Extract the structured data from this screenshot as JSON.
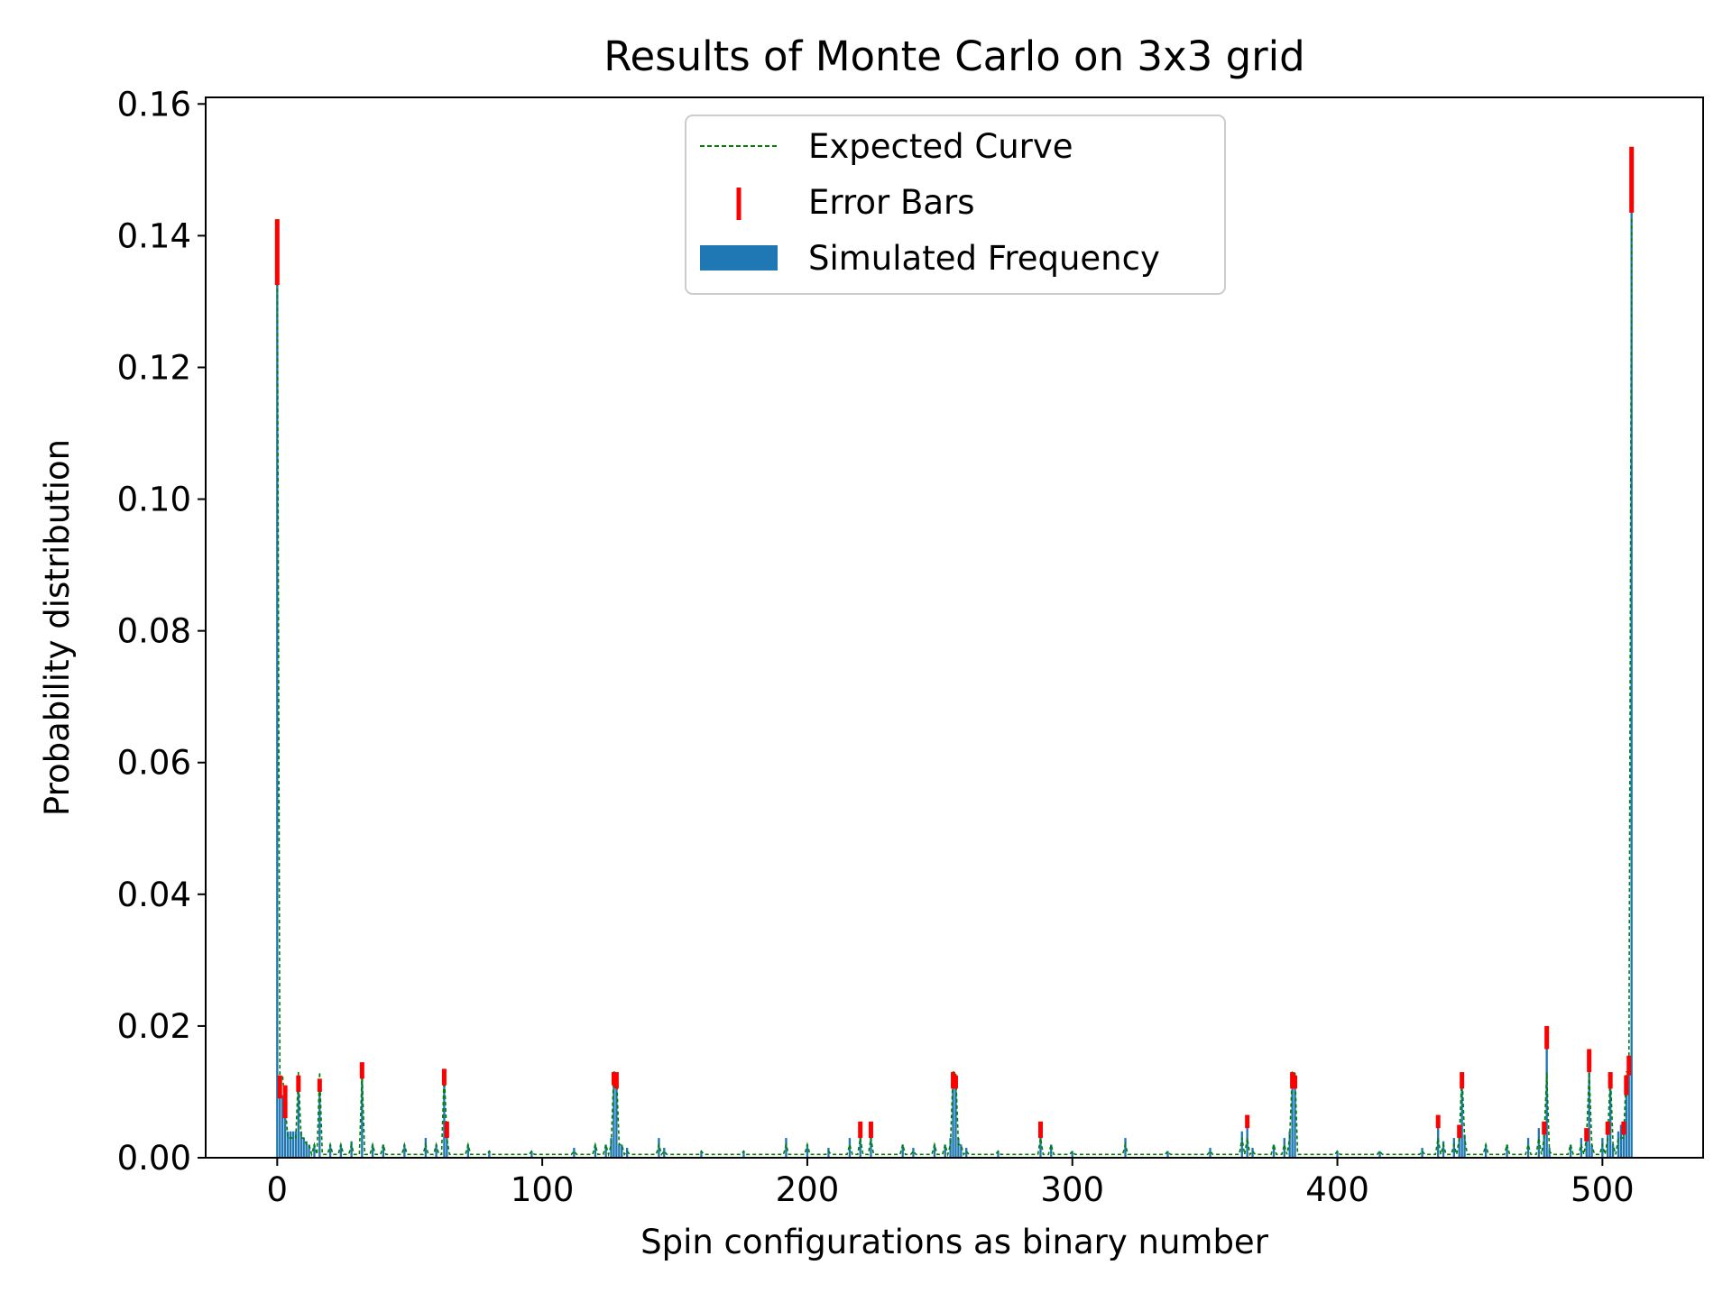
{
  "chart_data": {
    "type": "bar",
    "title": "Results of Monte Carlo on 3x3 grid",
    "xlabel": "Spin configurations as binary number",
    "ylabel": "Probability distribution",
    "xlim": [
      -27,
      538
    ],
    "ylim": [
      0,
      0.161
    ],
    "xticks": [
      0,
      100,
      200,
      300,
      400,
      500
    ],
    "xtick_labels": [
      "0",
      "100",
      "200",
      "300",
      "400",
      "500"
    ],
    "yticks": [
      0,
      0.02,
      0.04,
      0.06,
      0.08,
      0.1,
      0.12,
      0.14,
      0.16
    ],
    "ytick_labels": [
      "0.00",
      "0.02",
      "0.04",
      "0.06",
      "0.08",
      "0.10",
      "0.12",
      "0.14",
      "0.16"
    ],
    "grid": false,
    "legend_position": "top-center",
    "colors": {
      "bars": "#1f77b4",
      "curve": "#008000",
      "error_bars": "#ff0000"
    },
    "series": [
      {
        "name": "Simulated Frequency",
        "kind": "bar",
        "x": [
          0,
          1,
          2,
          3,
          4,
          5,
          6,
          7,
          8,
          9,
          10,
          11,
          12,
          14,
          16,
          20,
          24,
          28,
          32,
          36,
          40,
          48,
          56,
          60,
          63,
          64,
          72,
          80,
          96,
          112,
          120,
          124,
          126,
          127,
          128,
          129,
          130,
          132,
          144,
          146,
          160,
          176,
          192,
          200,
          208,
          216,
          220,
          224,
          236,
          240,
          248,
          252,
          254,
          255,
          256,
          257,
          258,
          260,
          272,
          288,
          292,
          300,
          320,
          336,
          352,
          364,
          366,
          368,
          376,
          380,
          382,
          383,
          384,
          400,
          416,
          432,
          438,
          440,
          444,
          446,
          447,
          448,
          456,
          464,
          472,
          476,
          478,
          479,
          480,
          488,
          492,
          494,
          495,
          496,
          500,
          502,
          503,
          504,
          506,
          507,
          508,
          509,
          510,
          511
        ],
        "values": [
          0.137,
          0.011,
          0.0095,
          0.008,
          0.004,
          0.004,
          0.004,
          0.004,
          0.012,
          0.004,
          0.003,
          0.0025,
          0.002,
          0.002,
          0.0115,
          0.002,
          0.002,
          0.0025,
          0.013,
          0.002,
          0.002,
          0.002,
          0.003,
          0.002,
          0.0125,
          0.004,
          0.002,
          0.001,
          0.001,
          0.0015,
          0.002,
          0.002,
          0.003,
          0.012,
          0.011,
          0.002,
          0.002,
          0.0015,
          0.003,
          0.0015,
          0.001,
          0.001,
          0.003,
          0.002,
          0.0015,
          0.003,
          0.004,
          0.004,
          0.002,
          0.0015,
          0.002,
          0.002,
          0.003,
          0.0115,
          0.0115,
          0.003,
          0.002,
          0.0015,
          0.001,
          0.004,
          0.002,
          0.001,
          0.003,
          0.001,
          0.0015,
          0.004,
          0.005,
          0.0015,
          0.002,
          0.003,
          0.004,
          0.0115,
          0.0115,
          0.001,
          0.001,
          0.0015,
          0.005,
          0.0025,
          0.003,
          0.004,
          0.0115,
          0.0035,
          0.002,
          0.002,
          0.003,
          0.0045,
          0.005,
          0.018,
          0.0015,
          0.002,
          0.003,
          0.004,
          0.014,
          0.002,
          0.003,
          0.005,
          0.012,
          0.002,
          0.004,
          0.005,
          0.005,
          0.011,
          0.014,
          0.148
        ]
      },
      {
        "name": "Expected Curve",
        "kind": "line",
        "x": [
          0,
          1,
          2,
          3,
          4,
          5,
          6,
          7,
          8,
          9,
          10,
          11,
          12,
          14,
          16,
          20,
          24,
          28,
          32,
          36,
          40,
          48,
          56,
          60,
          63,
          64,
          72,
          80,
          96,
          112,
          120,
          124,
          126,
          127,
          128,
          129,
          130,
          132,
          144,
          146,
          160,
          176,
          192,
          200,
          208,
          216,
          220,
          224,
          236,
          240,
          248,
          252,
          254,
          255,
          256,
          257,
          258,
          260,
          272,
          288,
          292,
          300,
          320,
          336,
          352,
          364,
          366,
          368,
          376,
          380,
          382,
          383,
          384,
          400,
          416,
          432,
          438,
          440,
          444,
          446,
          447,
          448,
          456,
          464,
          472,
          476,
          478,
          479,
          480,
          488,
          492,
          494,
          495,
          496,
          500,
          502,
          503,
          504,
          506,
          507,
          508,
          509,
          510,
          511
        ],
        "values": [
          0.1425,
          0.012,
          0.0125,
          0.008,
          0.003,
          0.003,
          0.003,
          0.003,
          0.013,
          0.003,
          0.003,
          0.002,
          0.002,
          0.002,
          0.013,
          0.002,
          0.002,
          0.002,
          0.013,
          0.002,
          0.002,
          0.002,
          0.002,
          0.002,
          0.013,
          0.003,
          0.002,
          0.001,
          0.001,
          0.001,
          0.002,
          0.002,
          0.002,
          0.013,
          0.013,
          0.002,
          0.002,
          0.001,
          0.002,
          0.001,
          0.001,
          0.001,
          0.002,
          0.002,
          0.001,
          0.002,
          0.003,
          0.003,
          0.002,
          0.001,
          0.002,
          0.002,
          0.002,
          0.013,
          0.013,
          0.002,
          0.002,
          0.001,
          0.001,
          0.003,
          0.002,
          0.001,
          0.002,
          0.001,
          0.001,
          0.003,
          0.003,
          0.001,
          0.002,
          0.002,
          0.003,
          0.013,
          0.013,
          0.001,
          0.001,
          0.001,
          0.003,
          0.002,
          0.002,
          0.003,
          0.013,
          0.003,
          0.002,
          0.002,
          0.002,
          0.003,
          0.003,
          0.013,
          0.001,
          0.002,
          0.002,
          0.003,
          0.013,
          0.002,
          0.002,
          0.003,
          0.013,
          0.002,
          0.003,
          0.003,
          0.003,
          0.013,
          0.013,
          0.1425
        ]
      },
      {
        "name": "Error Bars",
        "kind": "errorbar",
        "x": [
          0,
          1,
          3,
          8,
          16,
          32,
          63,
          127,
          128,
          255,
          256,
          383,
          384,
          447,
          479,
          495,
          503,
          510,
          511,
          64,
          220,
          224,
          288,
          366,
          438,
          446,
          478,
          494,
          502,
          508,
          509
        ],
        "lower": [
          0.1325,
          0.009,
          0.006,
          0.01,
          0.01,
          0.012,
          0.011,
          0.011,
          0.0105,
          0.0105,
          0.0105,
          0.0105,
          0.0105,
          0.0105,
          0.0165,
          0.013,
          0.0105,
          0.0125,
          0.1435,
          0.003,
          0.003,
          0.003,
          0.003,
          0.0045,
          0.0045,
          0.003,
          0.0035,
          0.0025,
          0.0035,
          0.0035,
          0.0095
        ],
        "upper": [
          0.1425,
          0.0125,
          0.011,
          0.0125,
          0.012,
          0.0145,
          0.0135,
          0.013,
          0.013,
          0.013,
          0.0125,
          0.013,
          0.0125,
          0.013,
          0.02,
          0.0165,
          0.013,
          0.0155,
          0.1535,
          0.0055,
          0.0055,
          0.0055,
          0.0055,
          0.0065,
          0.0065,
          0.005,
          0.0055,
          0.0045,
          0.0055,
          0.0055,
          0.0125
        ]
      }
    ],
    "legend": [
      "Expected Curve",
      "Error Bars",
      "Simulated Frequency"
    ]
  }
}
